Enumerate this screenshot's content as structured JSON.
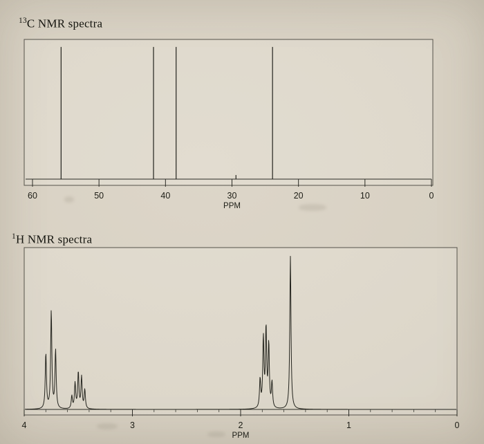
{
  "page": {
    "paper_light": "#ddd6c9",
    "paper_dark": "#c1baaa",
    "ink": "#23231d"
  },
  "chart_data": [
    {
      "id": "carbon-13",
      "type": "line",
      "title": "13C NMR spectra",
      "nucleus_label": {
        "sup": "13",
        "rest": "C NMR spectra"
      },
      "xlabel": "PPM",
      "x_range": [
        60,
        0
      ],
      "axis_reversed": true,
      "x_ticks": [
        60,
        50,
        40,
        30,
        20,
        10,
        0
      ],
      "grid": false,
      "legend": false,
      "peak_style": "stick",
      "peaks": [
        {
          "ppm": 55.7,
          "height": 0.97
        },
        {
          "ppm": 41.8,
          "height": 0.97
        },
        {
          "ppm": 38.4,
          "height": 0.97
        },
        {
          "ppm": 29.4,
          "height": 0.03
        },
        {
          "ppm": 23.9,
          "height": 0.97
        }
      ]
    },
    {
      "id": "proton-1",
      "type": "line",
      "title": "1H NMR spectra",
      "nucleus_label": {
        "sup": "1",
        "rest": "H NMR spectra"
      },
      "xlabel": "PPM",
      "x_range": [
        4,
        0
      ],
      "axis_reversed": true,
      "x_ticks": [
        4,
        3,
        2,
        1,
        0
      ],
      "minor_tick_step": 0.2,
      "grid": false,
      "legend": false,
      "peak_style": "lorentzian",
      "peaks": [
        {
          "ppm": 3.8,
          "height": 0.35
        },
        {
          "ppm": 3.75,
          "height": 0.62
        },
        {
          "ppm": 3.71,
          "height": 0.37
        },
        {
          "ppm": 3.56,
          "height": 0.08
        },
        {
          "ppm": 3.53,
          "height": 0.16
        },
        {
          "ppm": 3.5,
          "height": 0.23
        },
        {
          "ppm": 3.47,
          "height": 0.2
        },
        {
          "ppm": 3.44,
          "height": 0.12
        },
        {
          "ppm": 1.82,
          "height": 0.18
        },
        {
          "ppm": 1.79,
          "height": 0.44
        },
        {
          "ppm": 1.765,
          "height": 0.5
        },
        {
          "ppm": 1.74,
          "height": 0.4
        },
        {
          "ppm": 1.71,
          "height": 0.16
        },
        {
          "ppm": 1.54,
          "height": 0.97
        }
      ]
    }
  ]
}
